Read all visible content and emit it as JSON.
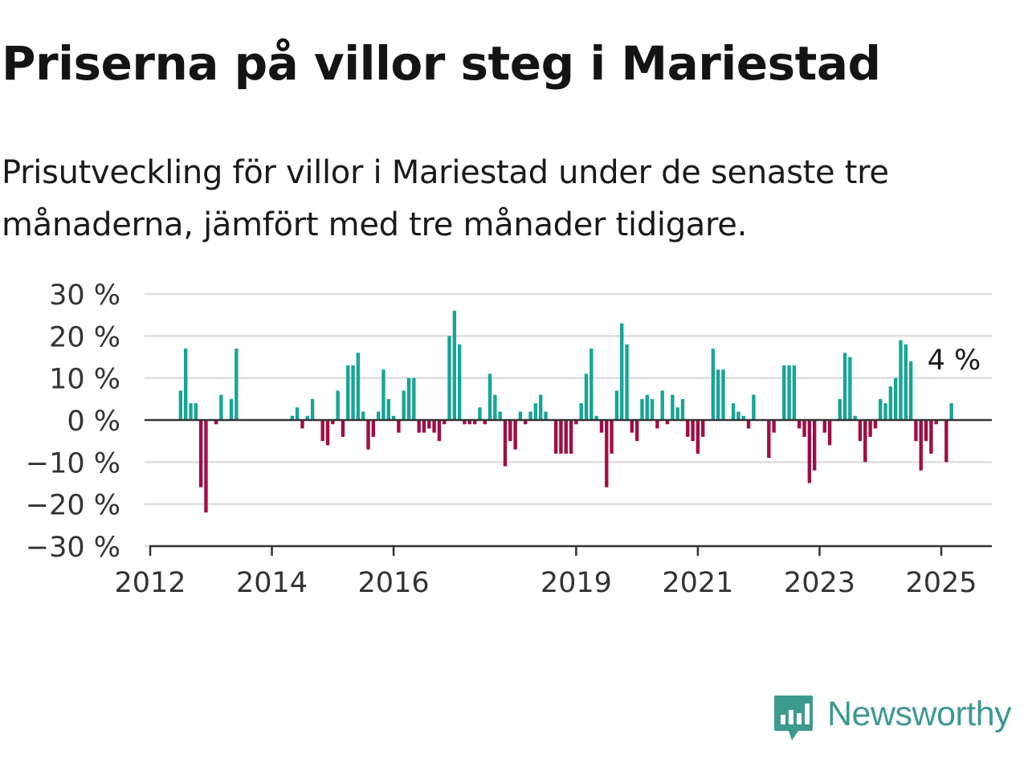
{
  "title": "Priserna på villor steg i Mariestad",
  "subtitle": "Prisutveckling för villor i Mariestad under de senaste tre månaderna, jämfört med tre månader tidigare.",
  "brand": {
    "name": "Newsworthy",
    "color": "#3d9a8f"
  },
  "chart_data": {
    "type": "bar",
    "title": "",
    "xlabel": "",
    "ylabel": "",
    "ylim": [
      -30,
      30
    ],
    "yticks": [
      30,
      20,
      10,
      0,
      -10,
      -20,
      -30
    ],
    "ytick_labels": [
      "30 %",
      "20 %",
      "10 %",
      "0 %",
      "−10 %",
      "−20 %",
      "−30 %"
    ],
    "xticks": [
      "2012",
      "2014",
      "2016",
      "2019",
      "2021",
      "2023",
      "2025"
    ],
    "grid": true,
    "colors": {
      "positive": "#17a597",
      "negative": "#a00d45",
      "gridline": "#dddddd",
      "zeroline": "#333333"
    },
    "annotation": {
      "date": "2025-03",
      "label": "4 %"
    },
    "series": [
      {
        "unit": "%",
        "points": [
          {
            "date": "2012-07",
            "value": 7
          },
          {
            "date": "2012-08",
            "value": 17
          },
          {
            "date": "2012-09",
            "value": 4
          },
          {
            "date": "2012-10",
            "value": 4
          },
          {
            "date": "2012-11",
            "value": -16
          },
          {
            "date": "2012-12",
            "value": -22
          },
          {
            "date": "2013-02",
            "value": -1
          },
          {
            "date": "2013-03",
            "value": 6
          },
          {
            "date": "2013-05",
            "value": 5
          },
          {
            "date": "2013-06",
            "value": 17
          },
          {
            "date": "2014-05",
            "value": 1
          },
          {
            "date": "2014-06",
            "value": 3
          },
          {
            "date": "2014-07",
            "value": -2
          },
          {
            "date": "2014-08",
            "value": 1
          },
          {
            "date": "2014-09",
            "value": 5
          },
          {
            "date": "2014-11",
            "value": -5
          },
          {
            "date": "2014-12",
            "value": -6
          },
          {
            "date": "2015-01",
            "value": -1
          },
          {
            "date": "2015-02",
            "value": 7
          },
          {
            "date": "2015-03",
            "value": -4
          },
          {
            "date": "2015-04",
            "value": 13
          },
          {
            "date": "2015-05",
            "value": 13
          },
          {
            "date": "2015-06",
            "value": 16
          },
          {
            "date": "2015-07",
            "value": 2
          },
          {
            "date": "2015-08",
            "value": -7
          },
          {
            "date": "2015-09",
            "value": -4
          },
          {
            "date": "2015-10",
            "value": 2
          },
          {
            "date": "2015-11",
            "value": 12
          },
          {
            "date": "2015-12",
            "value": 5
          },
          {
            "date": "2016-01",
            "value": 1
          },
          {
            "date": "2016-02",
            "value": -3
          },
          {
            "date": "2016-03",
            "value": 7
          },
          {
            "date": "2016-04",
            "value": 10
          },
          {
            "date": "2016-05",
            "value": 10
          },
          {
            "date": "2016-06",
            "value": -3
          },
          {
            "date": "2016-07",
            "value": -3
          },
          {
            "date": "2016-08",
            "value": -2
          },
          {
            "date": "2016-09",
            "value": -3
          },
          {
            "date": "2016-10",
            "value": -5
          },
          {
            "date": "2016-11",
            "value": -1
          },
          {
            "date": "2016-12",
            "value": 20
          },
          {
            "date": "2017-01",
            "value": 26
          },
          {
            "date": "2017-02",
            "value": 18
          },
          {
            "date": "2017-03",
            "value": -1
          },
          {
            "date": "2017-04",
            "value": -1
          },
          {
            "date": "2017-05",
            "value": -1
          },
          {
            "date": "2017-06",
            "value": 3
          },
          {
            "date": "2017-07",
            "value": -1
          },
          {
            "date": "2017-08",
            "value": 11
          },
          {
            "date": "2017-09",
            "value": 6
          },
          {
            "date": "2017-10",
            "value": 2
          },
          {
            "date": "2017-11",
            "value": -11
          },
          {
            "date": "2017-12",
            "value": -5
          },
          {
            "date": "2018-01",
            "value": -7
          },
          {
            "date": "2018-02",
            "value": 2
          },
          {
            "date": "2018-03",
            "value": -1
          },
          {
            "date": "2018-04",
            "value": 2
          },
          {
            "date": "2018-05",
            "value": 4
          },
          {
            "date": "2018-06",
            "value": 6
          },
          {
            "date": "2018-07",
            "value": 2
          },
          {
            "date": "2018-09",
            "value": -8
          },
          {
            "date": "2018-10",
            "value": -8
          },
          {
            "date": "2018-11",
            "value": -8
          },
          {
            "date": "2018-12",
            "value": -8
          },
          {
            "date": "2019-01",
            "value": -1
          },
          {
            "date": "2019-02",
            "value": 4
          },
          {
            "date": "2019-03",
            "value": 11
          },
          {
            "date": "2019-04",
            "value": 17
          },
          {
            "date": "2019-05",
            "value": 1
          },
          {
            "date": "2019-06",
            "value": -3
          },
          {
            "date": "2019-07",
            "value": -16
          },
          {
            "date": "2019-08",
            "value": -8
          },
          {
            "date": "2019-09",
            "value": 7
          },
          {
            "date": "2019-10",
            "value": 23
          },
          {
            "date": "2019-11",
            "value": 18
          },
          {
            "date": "2019-12",
            "value": -3
          },
          {
            "date": "2020-01",
            "value": -5
          },
          {
            "date": "2020-02",
            "value": 5
          },
          {
            "date": "2020-03",
            "value": 6
          },
          {
            "date": "2020-04",
            "value": 5
          },
          {
            "date": "2020-05",
            "value": -2
          },
          {
            "date": "2020-06",
            "value": 7
          },
          {
            "date": "2020-07",
            "value": -1
          },
          {
            "date": "2020-08",
            "value": 6
          },
          {
            "date": "2020-09",
            "value": 3
          },
          {
            "date": "2020-10",
            "value": 5
          },
          {
            "date": "2020-11",
            "value": -4
          },
          {
            "date": "2020-12",
            "value": -5
          },
          {
            "date": "2021-01",
            "value": -8
          },
          {
            "date": "2021-02",
            "value": -4
          },
          {
            "date": "2021-04",
            "value": 17
          },
          {
            "date": "2021-05",
            "value": 12
          },
          {
            "date": "2021-06",
            "value": 12
          },
          {
            "date": "2021-08",
            "value": 4
          },
          {
            "date": "2021-09",
            "value": 2
          },
          {
            "date": "2021-10",
            "value": 1
          },
          {
            "date": "2021-11",
            "value": -2
          },
          {
            "date": "2021-12",
            "value": 6
          },
          {
            "date": "2022-03",
            "value": -9
          },
          {
            "date": "2022-04",
            "value": -3
          },
          {
            "date": "2022-06",
            "value": 13
          },
          {
            "date": "2022-07",
            "value": 13
          },
          {
            "date": "2022-08",
            "value": 13
          },
          {
            "date": "2022-09",
            "value": -2
          },
          {
            "date": "2022-10",
            "value": -4
          },
          {
            "date": "2022-11",
            "value": -15
          },
          {
            "date": "2022-12",
            "value": -12
          },
          {
            "date": "2023-02",
            "value": -3
          },
          {
            "date": "2023-03",
            "value": -6
          },
          {
            "date": "2023-05",
            "value": 5
          },
          {
            "date": "2023-06",
            "value": 16
          },
          {
            "date": "2023-07",
            "value": 15
          },
          {
            "date": "2023-08",
            "value": 1
          },
          {
            "date": "2023-09",
            "value": -5
          },
          {
            "date": "2023-10",
            "value": -10
          },
          {
            "date": "2023-11",
            "value": -4
          },
          {
            "date": "2023-12",
            "value": -2
          },
          {
            "date": "2024-01",
            "value": 5
          },
          {
            "date": "2024-02",
            "value": 4
          },
          {
            "date": "2024-03",
            "value": 8
          },
          {
            "date": "2024-04",
            "value": 10
          },
          {
            "date": "2024-05",
            "value": 19
          },
          {
            "date": "2024-06",
            "value": 18
          },
          {
            "date": "2024-07",
            "value": 14
          },
          {
            "date": "2024-08",
            "value": -5
          },
          {
            "date": "2024-09",
            "value": -12
          },
          {
            "date": "2024-10",
            "value": -5
          },
          {
            "date": "2024-11",
            "value": -8
          },
          {
            "date": "2024-12",
            "value": -1
          },
          {
            "date": "2025-02",
            "value": -10
          },
          {
            "date": "2025-03",
            "value": 4
          }
        ]
      }
    ]
  }
}
